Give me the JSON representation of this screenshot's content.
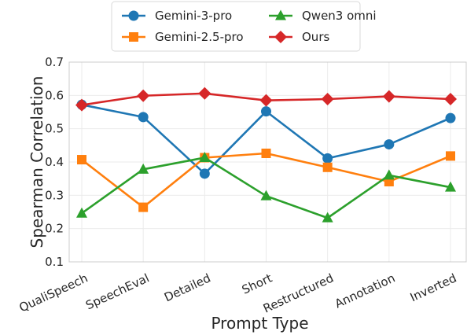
{
  "chart_data": {
    "type": "line",
    "title": "",
    "xlabel": "Prompt Type",
    "ylabel": "Spearman Correlation",
    "categories": [
      "QualiSpeech",
      "SpeechEval",
      "Detailed",
      "Short",
      "Restructured",
      "Annotation",
      "Inverted"
    ],
    "ylim": [
      0.1,
      0.7
    ],
    "yticks": [
      "0.1",
      "0.2",
      "0.3",
      "0.4",
      "0.5",
      "0.6",
      "0.7"
    ],
    "grid": true,
    "legend_position": "top-center",
    "series": [
      {
        "name": "Gemini-3-pro",
        "color": "#1f77b4",
        "marker": "circle",
        "values": [
          0.572,
          0.535,
          0.365,
          0.552,
          0.411,
          0.453,
          0.532
        ]
      },
      {
        "name": "Gemini-2.5-pro",
        "color": "#ff7f0e",
        "marker": "square",
        "values": [
          0.407,
          0.264,
          0.413,
          0.426,
          0.384,
          0.341,
          0.418
        ]
      },
      {
        "name": "Qwen3 omni",
        "color": "#2ca02c",
        "marker": "triangle",
        "values": [
          0.246,
          0.378,
          0.413,
          0.298,
          0.232,
          0.36,
          0.324
        ]
      },
      {
        "name": "Ours",
        "color": "#d62728",
        "marker": "diamond",
        "values": [
          0.571,
          0.599,
          0.606,
          0.585,
          0.589,
          0.597,
          0.589
        ]
      }
    ]
  }
}
